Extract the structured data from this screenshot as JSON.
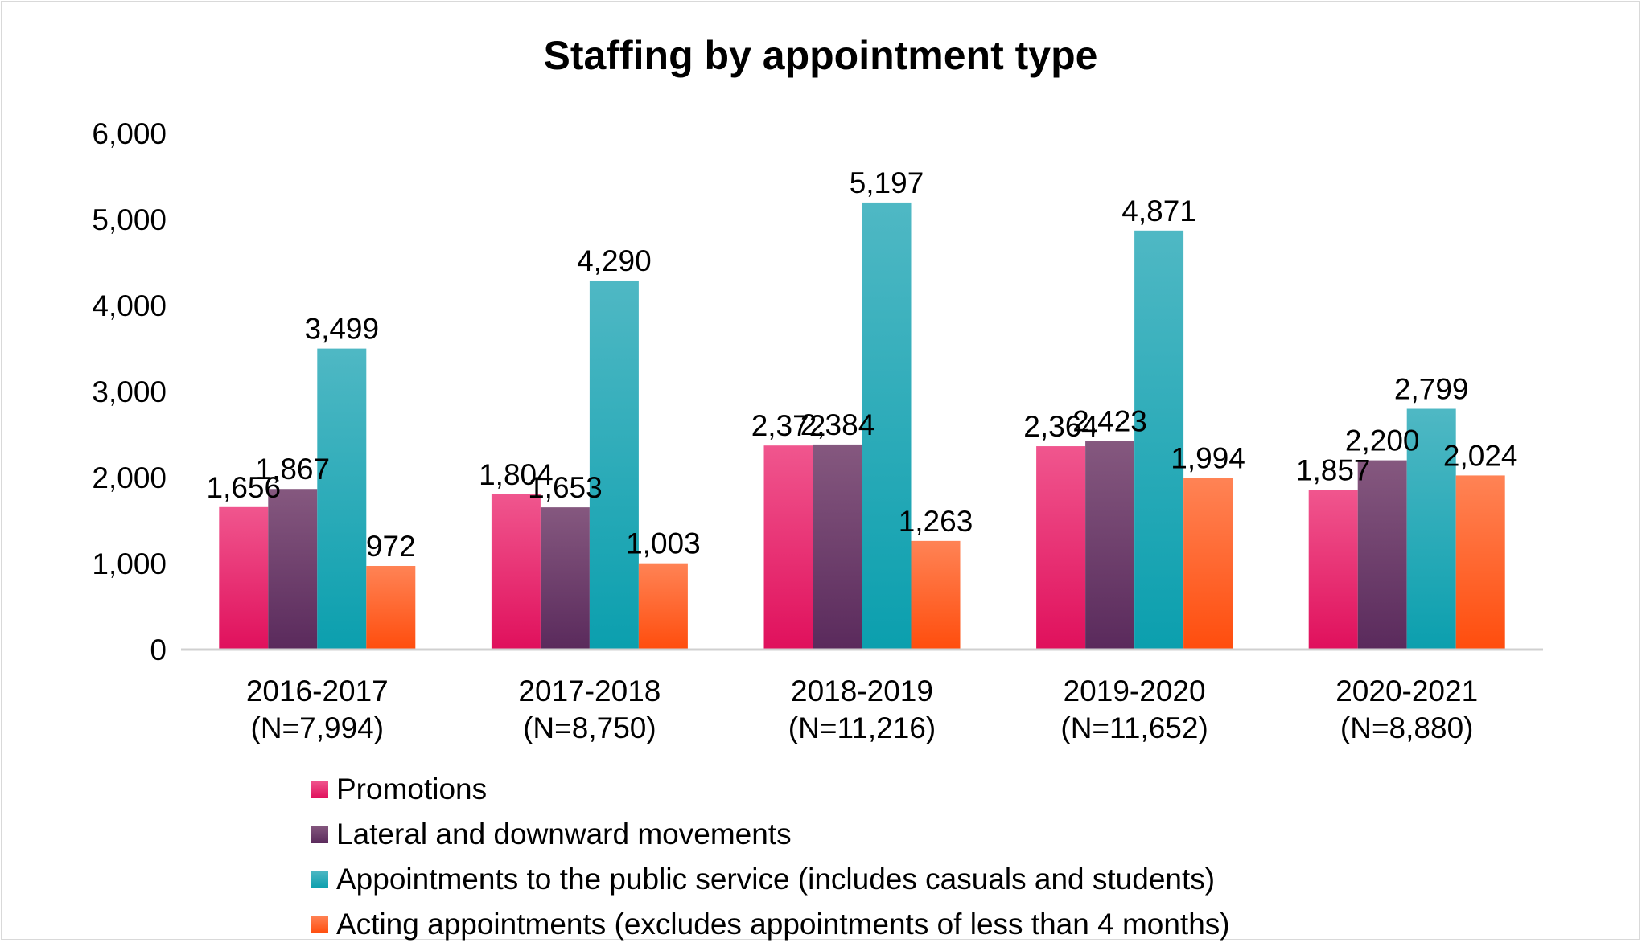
{
  "chart_data": {
    "type": "bar",
    "title": "Staffing by appointment type",
    "xlabel": "",
    "ylabel": "",
    "ylim": [
      0,
      6000
    ],
    "yticks": [
      "6,000",
      "5,000",
      "4,000",
      "3,000",
      "2,000",
      "1,000",
      "0"
    ],
    "ytick_values": [
      6000,
      5000,
      4000,
      3000,
      2000,
      1000,
      0
    ],
    "categories": [
      {
        "year": "2016-2017",
        "n": "(N=7,994)"
      },
      {
        "year": "2017-2018",
        "n": "(N=8,750)"
      },
      {
        "year": "2018-2019",
        "n": "(N=11,216)"
      },
      {
        "year": "2019-2020",
        "n": "(N=11,652)"
      },
      {
        "year": "2020-2021",
        "n": "(N=8,880)"
      }
    ],
    "series": [
      {
        "name": "Promotions",
        "color": "#e0105c",
        "color_light": "#f0568e",
        "values": [
          1656,
          1804,
          2372,
          2364,
          1857
        ],
        "labels": [
          "1,656",
          "1,804",
          "2,372",
          "2,364",
          "1,857"
        ]
      },
      {
        "name": "Lateral and downward movements",
        "color": "#5a2a5c",
        "color_light": "#85587f",
        "values": [
          1867,
          1653,
          2384,
          2423,
          2200
        ],
        "labels": [
          "1,867",
          "1,653",
          "2,384",
          "2,423",
          "2,200"
        ]
      },
      {
        "name": "Appointments to the public service (includes casuals and students)",
        "color": "#0b9fae",
        "color_light": "#4fb8c4",
        "values": [
          3499,
          4290,
          5197,
          4871,
          2799
        ],
        "labels": [
          "3,499",
          "4,290",
          "5,197",
          "4,871",
          "2,799"
        ]
      },
      {
        "name": "Acting appointments (excludes appointments of less than 4 months)",
        "color": "#ff4d0d",
        "color_light": "#ff8355",
        "values": [
          972,
          1003,
          1263,
          1994,
          2024
        ],
        "labels": [
          "972",
          "1,003",
          "1,263",
          "1,994",
          "2,024"
        ]
      }
    ],
    "legend_position": "bottom"
  }
}
